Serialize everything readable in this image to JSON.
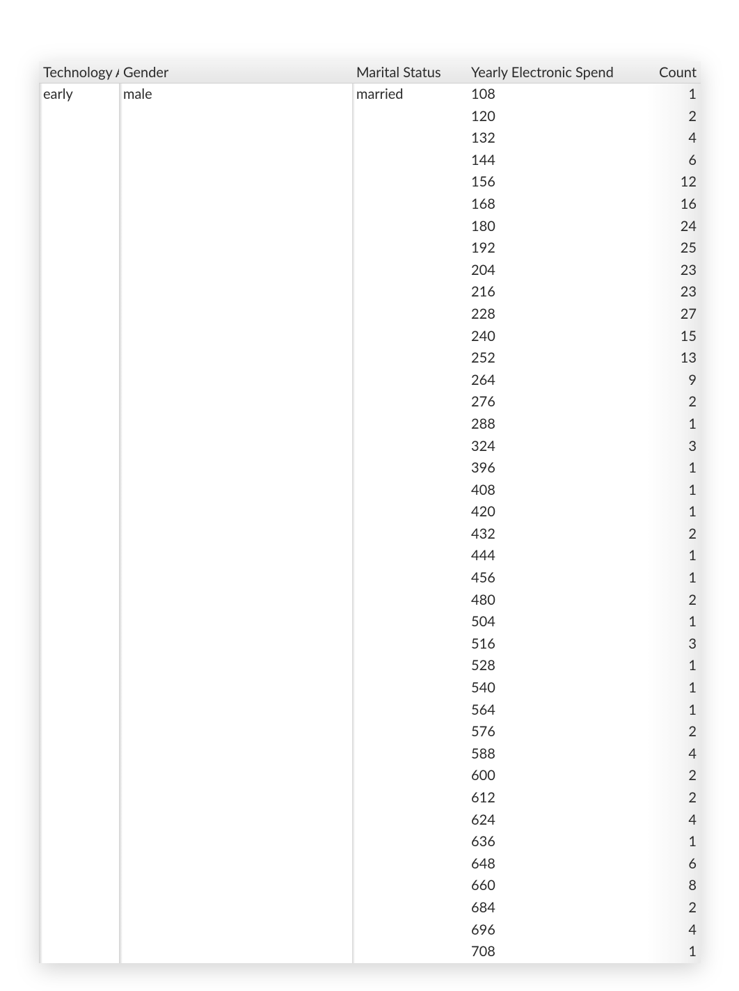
{
  "table": {
    "columns": [
      {
        "key": "tech",
        "label": "Technology Ado",
        "class": "col-tech"
      },
      {
        "key": "gender",
        "label": "Gender",
        "class": "col-gender"
      },
      {
        "key": "marital",
        "label": "Marital Status",
        "class": "col-marital"
      },
      {
        "key": "spend",
        "label": "Yearly Electronic Spend",
        "class": "col-spend"
      },
      {
        "key": "count",
        "label": "Count",
        "class": "col-count"
      }
    ],
    "group": {
      "tech": "early",
      "gender": "male",
      "marital": "married"
    },
    "rows": [
      {
        "spend": 108,
        "count": 1
      },
      {
        "spend": 120,
        "count": 2
      },
      {
        "spend": 132,
        "count": 4
      },
      {
        "spend": 144,
        "count": 6
      },
      {
        "spend": 156,
        "count": 12
      },
      {
        "spend": 168,
        "count": 16
      },
      {
        "spend": 180,
        "count": 24
      },
      {
        "spend": 192,
        "count": 25
      },
      {
        "spend": 204,
        "count": 23
      },
      {
        "spend": 216,
        "count": 23
      },
      {
        "spend": 228,
        "count": 27
      },
      {
        "spend": 240,
        "count": 15
      },
      {
        "spend": 252,
        "count": 13
      },
      {
        "spend": 264,
        "count": 9
      },
      {
        "spend": 276,
        "count": 2
      },
      {
        "spend": 288,
        "count": 1
      },
      {
        "spend": 324,
        "count": 3
      },
      {
        "spend": 396,
        "count": 1
      },
      {
        "spend": 408,
        "count": 1
      },
      {
        "spend": 420,
        "count": 1
      },
      {
        "spend": 432,
        "count": 2
      },
      {
        "spend": 444,
        "count": 1
      },
      {
        "spend": 456,
        "count": 1
      },
      {
        "spend": 480,
        "count": 2
      },
      {
        "spend": 504,
        "count": 1
      },
      {
        "spend": 516,
        "count": 3
      },
      {
        "spend": 528,
        "count": 1
      },
      {
        "spend": 540,
        "count": 1
      },
      {
        "spend": 564,
        "count": 1
      },
      {
        "spend": 576,
        "count": 2
      },
      {
        "spend": 588,
        "count": 4
      },
      {
        "spend": 600,
        "count": 2
      },
      {
        "spend": 612,
        "count": 2
      },
      {
        "spend": 624,
        "count": 4
      },
      {
        "spend": 636,
        "count": 1
      },
      {
        "spend": 648,
        "count": 6
      },
      {
        "spend": 660,
        "count": 8
      },
      {
        "spend": 684,
        "count": 2
      },
      {
        "spend": 696,
        "count": 4
      },
      {
        "spend": 708,
        "count": 1
      }
    ]
  },
  "style": {
    "font_family": "Segoe UI, Lato, sans-serif",
    "header_bg_top": "#f3f3f3",
    "header_bg_bottom": "#e6e6e6",
    "text_color": "#2a2a2a",
    "count_shade_color": "#e9e9e9",
    "group_ridge_color": "#d2d2d2",
    "background_color": "#ffffff",
    "font_size_pt": 15,
    "row_line_height": 1.38
  }
}
